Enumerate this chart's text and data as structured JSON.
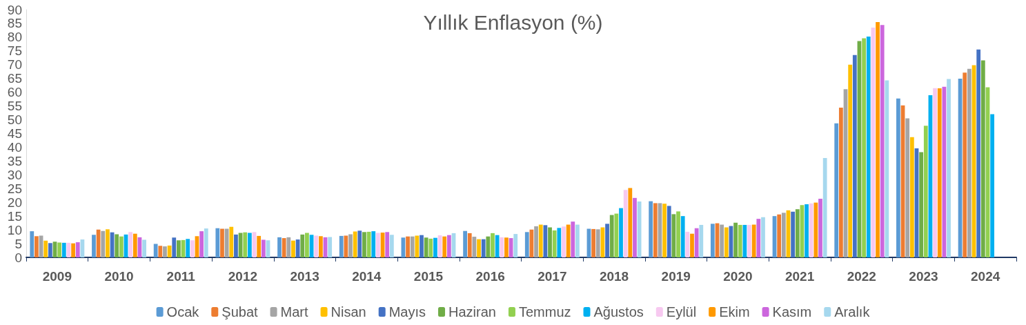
{
  "chart_data": {
    "type": "bar",
    "title": "Yıllık Enflasyon (%)",
    "categories": [
      "2009",
      "2010",
      "2011",
      "2012",
      "2013",
      "2014",
      "2015",
      "2016",
      "2017",
      "2018",
      "2019",
      "2020",
      "2021",
      "2022",
      "2023",
      "2024"
    ],
    "series": [
      {
        "name": "Ocak",
        "color": "#5b9bd5",
        "values": [
          9.5,
          8.2,
          4.9,
          10.6,
          7.3,
          7.8,
          7.2,
          9.6,
          9.2,
          10.4,
          20.4,
          12.2,
          15.0,
          48.7,
          57.7,
          64.9
        ]
      },
      {
        "name": "Şubat",
        "color": "#ed7d31",
        "values": [
          7.7,
          10.1,
          4.2,
          10.4,
          7.0,
          7.9,
          7.6,
          8.8,
          10.1,
          10.3,
          19.7,
          12.4,
          15.6,
          54.4,
          55.2,
          67.1
        ]
      },
      {
        "name": "Mart",
        "color": "#a5a5a5",
        "values": [
          7.9,
          9.6,
          4.0,
          10.4,
          7.3,
          8.4,
          7.6,
          7.5,
          11.3,
          10.2,
          19.7,
          11.9,
          16.2,
          61.1,
          50.5,
          68.5
        ]
      },
      {
        "name": "Nisan",
        "color": "#ffc000",
        "values": [
          6.1,
          10.2,
          4.3,
          11.1,
          6.1,
          9.4,
          7.9,
          6.6,
          11.9,
          10.9,
          19.5,
          10.9,
          17.1,
          70.0,
          43.7,
          69.8
        ]
      },
      {
        "name": "Mayıs",
        "color": "#4472c4",
        "values": [
          5.2,
          9.1,
          7.2,
          8.3,
          6.5,
          9.7,
          8.1,
          6.6,
          11.7,
          12.2,
          18.7,
          11.4,
          16.6,
          73.5,
          39.6,
          75.5
        ]
      },
      {
        "name": "Haziran",
        "color": "#70ad47",
        "values": [
          5.7,
          8.4,
          6.2,
          8.9,
          8.3,
          9.2,
          7.2,
          7.6,
          10.9,
          15.4,
          15.7,
          12.6,
          17.5,
          78.6,
          38.2,
          71.6
        ]
      },
      {
        "name": "Temmuz",
        "color": "#92d050",
        "values": [
          5.4,
          7.6,
          6.3,
          9.1,
          8.9,
          9.3,
          6.8,
          8.8,
          9.8,
          15.9,
          16.7,
          11.8,
          19.0,
          79.6,
          47.8,
          61.8
        ]
      },
      {
        "name": "Ağustos",
        "color": "#00b0f0",
        "values": [
          5.3,
          8.3,
          6.7,
          8.9,
          8.2,
          9.5,
          7.1,
          8.1,
          10.7,
          17.9,
          15.0,
          11.8,
          19.3,
          80.2,
          58.9,
          52.0
        ]
      },
      {
        "name": "Eylül",
        "color": "#f7c9f0",
        "values": [
          5.3,
          9.2,
          6.2,
          9.2,
          7.9,
          8.9,
          8.0,
          7.3,
          11.2,
          24.5,
          9.3,
          11.8,
          19.6,
          83.5,
          61.5,
          null
        ]
      },
      {
        "name": "Ekim",
        "color": "#ff9900",
        "values": [
          5.1,
          8.6,
          7.7,
          7.8,
          7.7,
          9.0,
          7.6,
          7.2,
          11.9,
          25.2,
          8.6,
          11.9,
          19.9,
          85.5,
          61.4,
          null
        ]
      },
      {
        "name": "Kasım",
        "color": "#cc66dd",
        "values": [
          5.5,
          7.3,
          9.5,
          6.4,
          7.3,
          9.2,
          8.1,
          7.0,
          13.0,
          21.6,
          10.6,
          14.0,
          21.3,
          84.4,
          62.0,
          null
        ]
      },
      {
        "name": "Aralık",
        "color": "#a6d8ee",
        "values": [
          6.5,
          6.4,
          10.5,
          6.2,
          7.4,
          8.2,
          8.8,
          8.5,
          11.9,
          20.3,
          11.8,
          14.6,
          36.1,
          64.3,
          64.8,
          null
        ]
      }
    ],
    "ylim": [
      0,
      90
    ],
    "yticks": [
      0,
      5,
      10,
      15,
      20,
      25,
      30,
      35,
      40,
      45,
      50,
      55,
      60,
      65,
      70,
      75,
      80,
      85,
      90
    ],
    "grid": false,
    "legend": "bottom"
  }
}
